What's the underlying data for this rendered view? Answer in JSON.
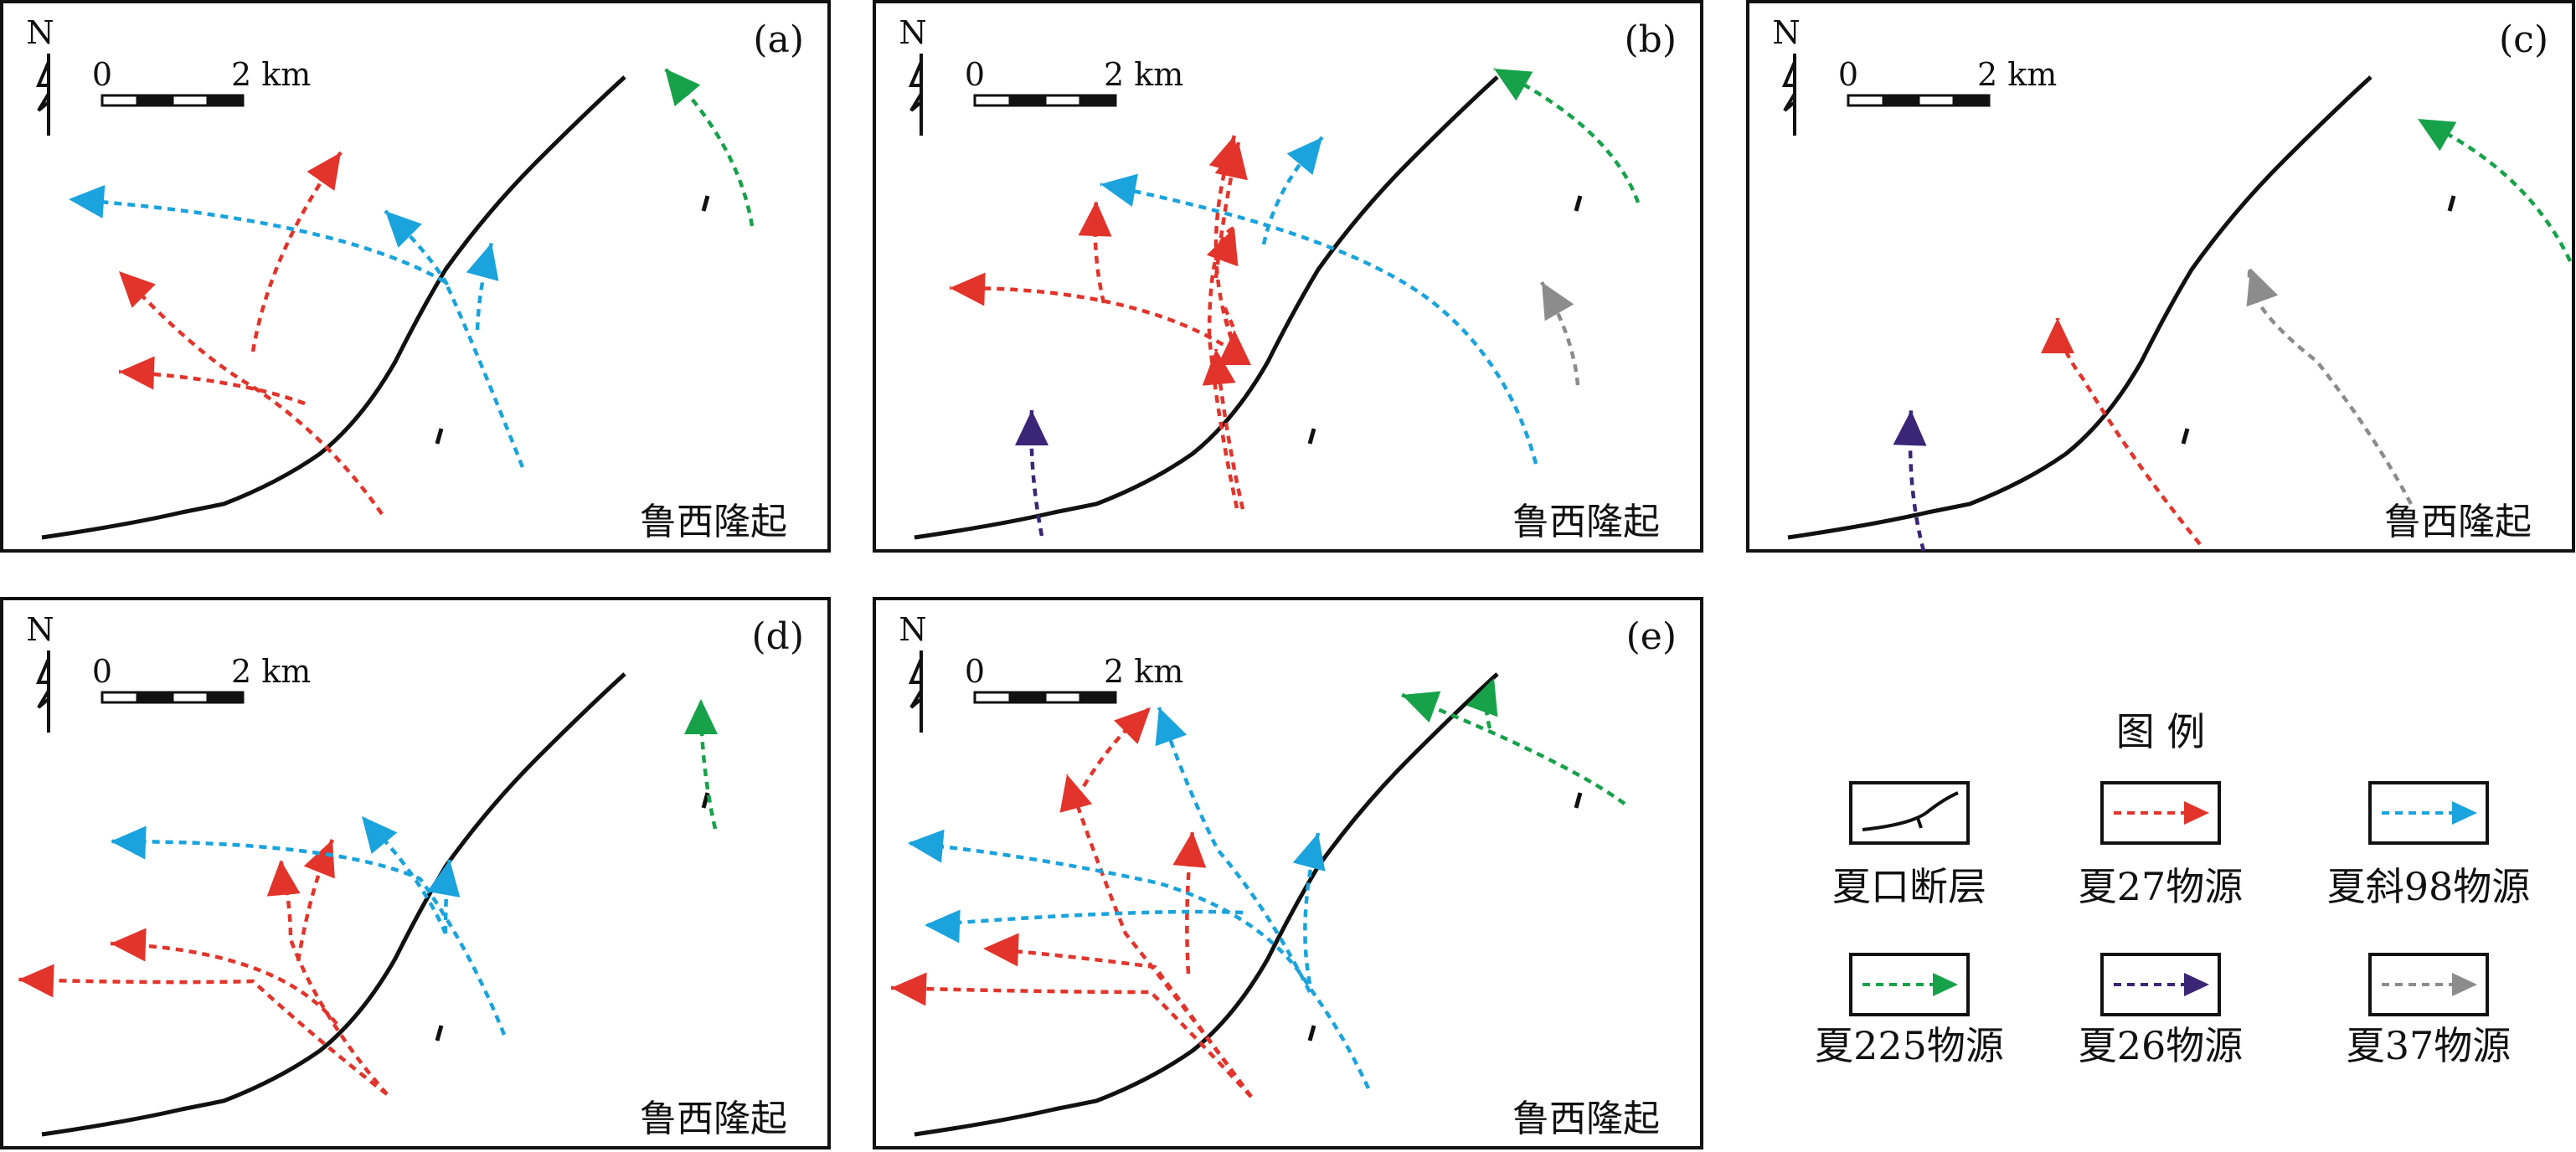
{
  "north_label": "N",
  "scale_zero": "0",
  "scale_end": "2 km",
  "uplift_label": "鲁西隆起",
  "panels": [
    {
      "label": "(a)"
    },
    {
      "label": "(b)"
    },
    {
      "label": "(c)"
    },
    {
      "label": "(d)"
    },
    {
      "label": "(e)"
    }
  ],
  "legend": {
    "title": "图 例",
    "items": [
      {
        "label": "夏口断层",
        "kind": "fault"
      },
      {
        "label": "夏27物源",
        "kind": "arrow",
        "color": "#e2342b"
      },
      {
        "label": "夏斜98物源",
        "kind": "arrow",
        "color": "#1aa3dd"
      },
      {
        "label": "夏225物源",
        "kind": "arrow",
        "color": "#17a24a"
      },
      {
        "label": "夏26物源",
        "kind": "arrow",
        "color": "#3a2577"
      },
      {
        "label": "夏37物源",
        "kind": "arrow",
        "color": "#8c8c8c"
      }
    ]
  },
  "colors": {
    "red": "#e2342b",
    "blue": "#1aa3dd",
    "green": "#17a24a",
    "purple": "#3a2577",
    "gray": "#8c8c8c",
    "fault": "#111111"
  }
}
